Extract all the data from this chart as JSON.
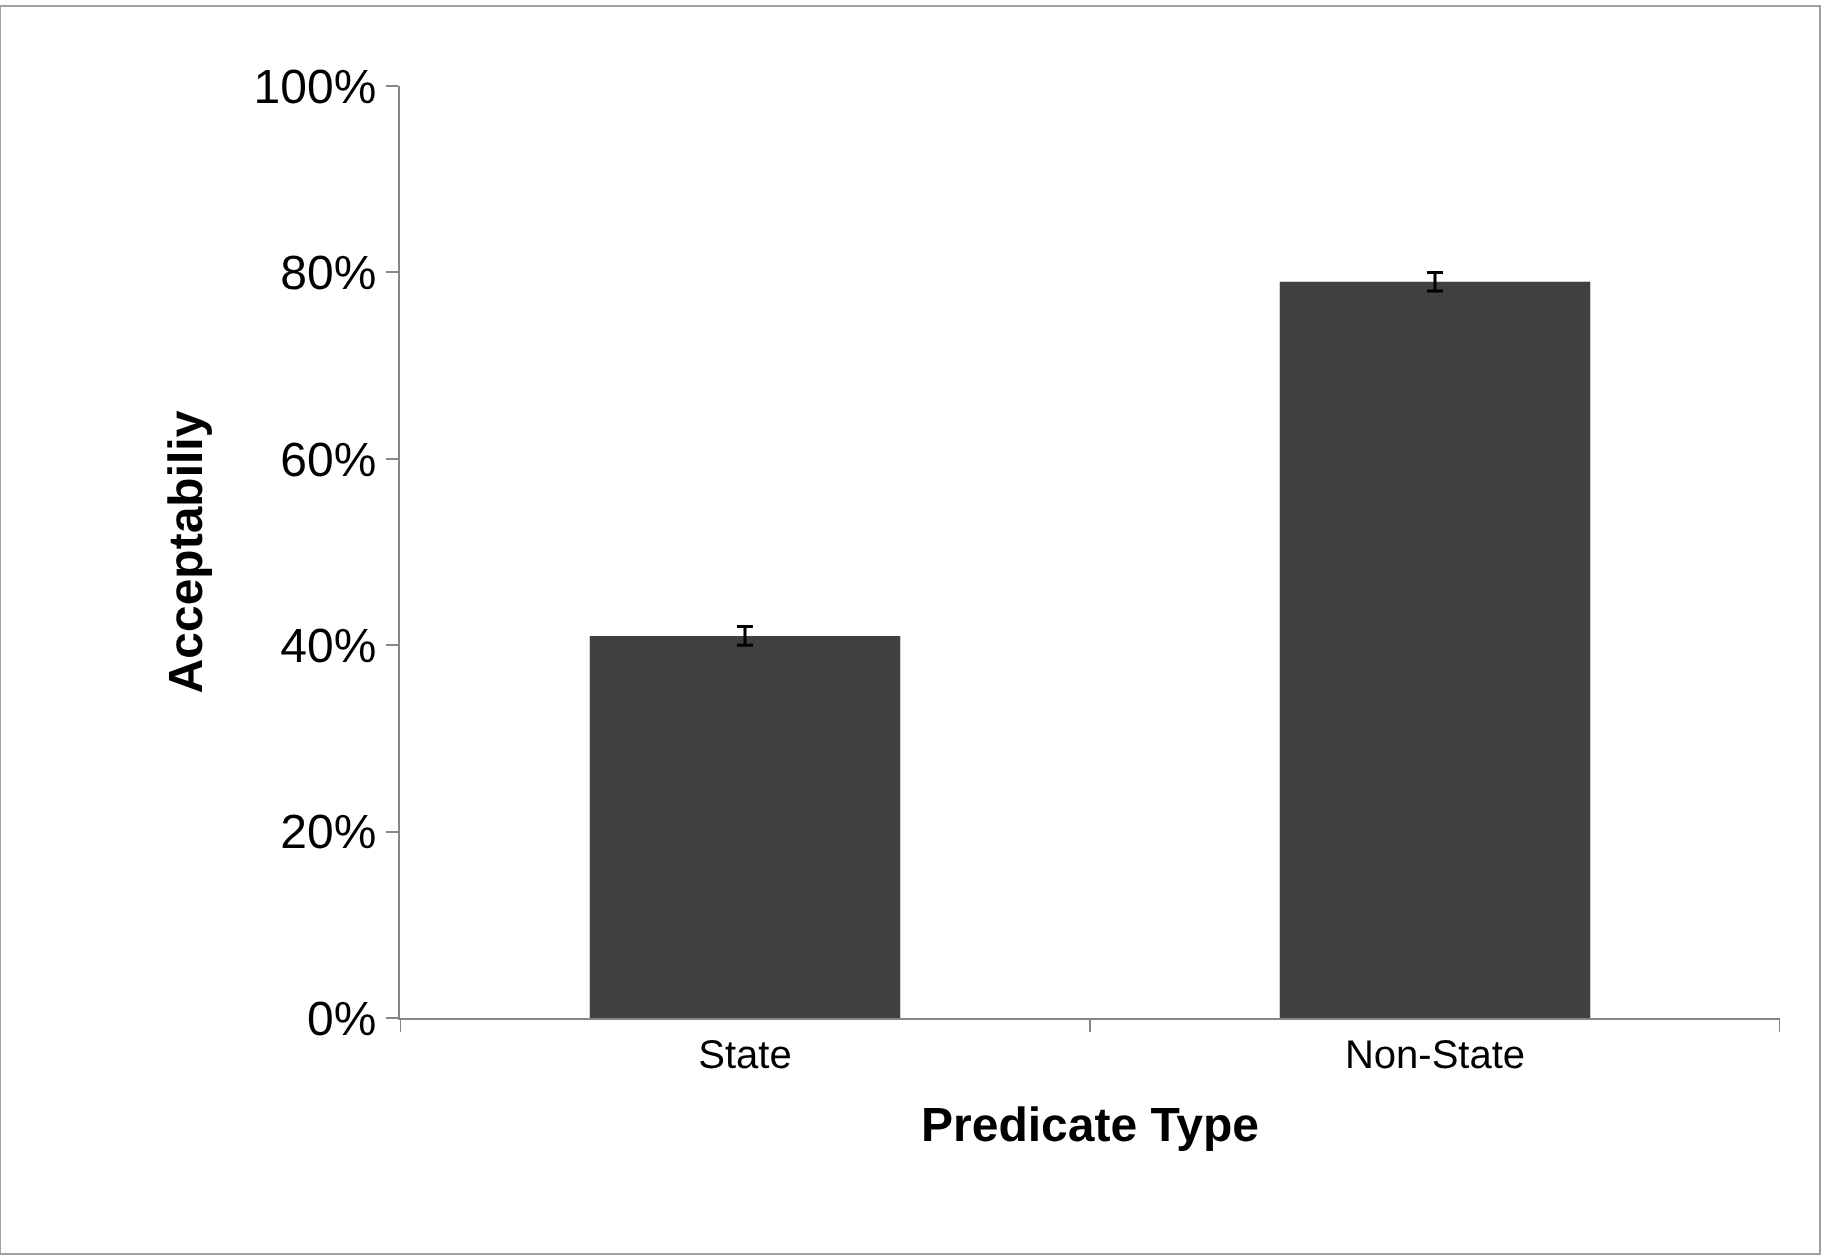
{
  "chart_data": {
    "type": "bar",
    "xlabel": "Predicate Type",
    "ylabel": "Acceptabiliy",
    "categories": [
      "State",
      "Non-State"
    ],
    "values": [
      41,
      79
    ],
    "errors": [
      1,
      1
    ],
    "color": "#404040",
    "ylim": [
      0,
      100
    ],
    "yticks": [
      {
        "value": 0,
        "label": "0%"
      },
      {
        "value": 20,
        "label": "20%"
      },
      {
        "value": 40,
        "label": "40%"
      },
      {
        "value": 60,
        "label": "60%"
      },
      {
        "value": 80,
        "label": "80%"
      },
      {
        "value": 100,
        "label": "100%"
      }
    ],
    "legend": false
  }
}
